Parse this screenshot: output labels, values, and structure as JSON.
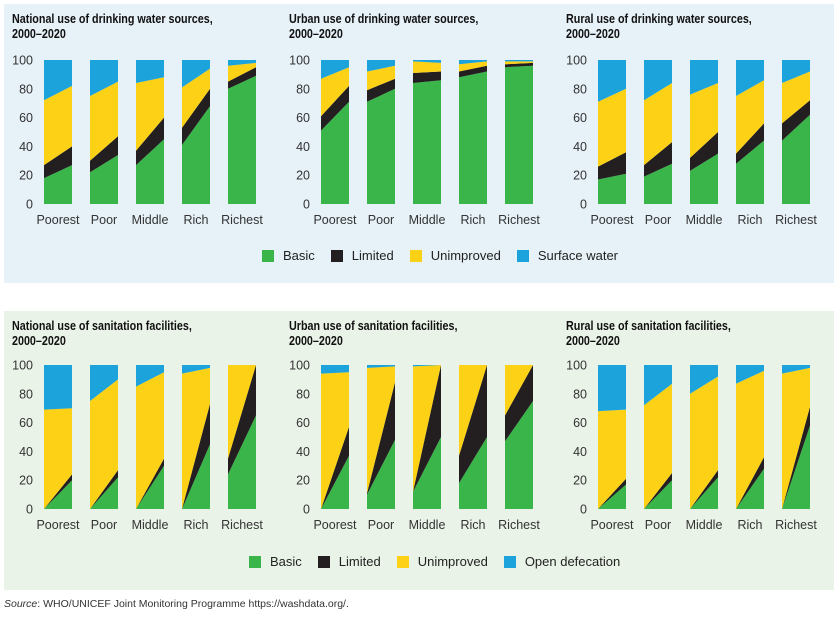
{
  "colors": {
    "basic": "#3ab54a",
    "limited": "#231f20",
    "unimproved": "#fcd116",
    "surface": "#1ca3dc"
  },
  "legend_water": [
    "Basic",
    "Limited",
    "Unimproved",
    "Surface water"
  ],
  "legend_sanitation": [
    "Basic",
    "Limited",
    "Unimproved",
    "Open defecation"
  ],
  "source": {
    "label": "Source",
    "text": ": WHO/UNICEF Joint Monitoring Programme https://washdata.org/."
  },
  "chart_data": [
    {
      "type": "area",
      "stacked_bar_area": true,
      "title_line1": "National use of drinking water sources,",
      "title_line2": "2000–2020",
      "categories": [
        "Poorest",
        "Poor",
        "Middle",
        "Rich",
        "Richest"
      ],
      "ylim": [
        0,
        100
      ],
      "yticks": [
        0,
        20,
        40,
        60,
        80,
        100
      ],
      "series": [
        {
          "name": "Basic",
          "key": "basic",
          "start": [
            18,
            22,
            27,
            41,
            80
          ],
          "end": [
            27,
            34,
            45,
            68,
            89
          ]
        },
        {
          "name": "Limited",
          "key": "limited",
          "start": [
            9,
            8,
            10,
            12,
            5
          ],
          "end": [
            13,
            13,
            15,
            12,
            6
          ]
        },
        {
          "name": "Unimproved",
          "key": "unimproved",
          "start": [
            45,
            45,
            47,
            28,
            11
          ],
          "end": [
            42,
            38,
            28,
            14,
            3
          ]
        },
        {
          "name": "Surface water",
          "key": "surface",
          "start": [
            28,
            25,
            16,
            19,
            4
          ],
          "end": [
            18,
            15,
            12,
            6,
            2
          ]
        }
      ]
    },
    {
      "type": "area",
      "stacked_bar_area": true,
      "title_line1": "Urban use of drinking water sources,",
      "title_line2": "2000–2020",
      "categories": [
        "Poorest",
        "Poor",
        "Middle",
        "Rich",
        "Richest"
      ],
      "ylim": [
        0,
        100
      ],
      "yticks": [
        0,
        20,
        40,
        60,
        80,
        100
      ],
      "series": [
        {
          "name": "Basic",
          "key": "basic",
          "start": [
            51,
            71,
            84,
            88,
            95
          ],
          "end": [
            71,
            80,
            86,
            92,
            96
          ]
        },
        {
          "name": "Limited",
          "key": "limited",
          "start": [
            10,
            8,
            7,
            4,
            2
          ],
          "end": [
            11,
            7,
            6,
            4,
            2
          ]
        },
        {
          "name": "Unimproved",
          "key": "unimproved",
          "start": [
            26,
            13,
            8,
            5,
            2
          ],
          "end": [
            13,
            9,
            6,
            3,
            1
          ]
        },
        {
          "name": "Surface water",
          "key": "surface",
          "start": [
            13,
            8,
            1,
            3,
            1
          ],
          "end": [
            5,
            4,
            2,
            1,
            1
          ]
        }
      ]
    },
    {
      "type": "area",
      "stacked_bar_area": true,
      "title_line1": "Rural use of drinking water sources,",
      "title_line2": "2000–2020",
      "categories": [
        "Poorest",
        "Poor",
        "Middle",
        "Rich",
        "Richest"
      ],
      "ylim": [
        0,
        100
      ],
      "yticks": [
        0,
        20,
        40,
        60,
        80,
        100
      ],
      "series": [
        {
          "name": "Basic",
          "key": "basic",
          "start": [
            17,
            19,
            23,
            28,
            44
          ],
          "end": [
            21,
            28,
            35,
            44,
            62
          ]
        },
        {
          "name": "Limited",
          "key": "limited",
          "start": [
            9,
            8,
            9,
            7,
            12
          ],
          "end": [
            15,
            15,
            15,
            12,
            10
          ]
        },
        {
          "name": "Unimproved",
          "key": "unimproved",
          "start": [
            45,
            45,
            44,
            40,
            28
          ],
          "end": [
            44,
            41,
            34,
            30,
            20
          ]
        },
        {
          "name": "Surface water",
          "key": "surface",
          "start": [
            29,
            28,
            24,
            25,
            16
          ],
          "end": [
            20,
            16,
            16,
            14,
            8
          ]
        }
      ]
    },
    {
      "type": "area",
      "stacked_bar_area": true,
      "title_line1": "National use of sanitation facilities,",
      "title_line2": "2000–2020",
      "categories": [
        "Poorest",
        "Poor",
        "Middle",
        "Rich",
        "Richest"
      ],
      "ylim": [
        0,
        100
      ],
      "yticks": [
        0,
        20,
        40,
        60,
        80,
        100
      ],
      "series": [
        {
          "name": "Basic",
          "key": "basic",
          "start": [
            0,
            0,
            0,
            0,
            24
          ],
          "end": [
            20,
            22,
            30,
            45,
            65
          ]
        },
        {
          "name": "Limited",
          "key": "limited",
          "start": [
            0,
            0,
            0,
            0,
            11
          ],
          "end": [
            4,
            5,
            5,
            28,
            35
          ]
        },
        {
          "name": "Unimproved",
          "key": "unimproved",
          "start": [
            69,
            75,
            85,
            94,
            65
          ],
          "end": [
            46,
            63,
            60,
            25,
            0
          ]
        },
        {
          "name": "Open defecation",
          "key": "surface",
          "start": [
            31,
            25,
            15,
            6,
            0
          ],
          "end": [
            30,
            10,
            5,
            2,
            0
          ]
        }
      ]
    },
    {
      "type": "area",
      "stacked_bar_area": true,
      "title_line1": "Urban use of sanitation facilities,",
      "title_line2": "2000–2020",
      "categories": [
        "Poorest",
        "Poor",
        "Middle",
        "Rich",
        "Richest"
      ],
      "ylim": [
        0,
        100
      ],
      "yticks": [
        0,
        20,
        40,
        60,
        80,
        100
      ],
      "series": [
        {
          "name": "Basic",
          "key": "basic",
          "start": [
            0,
            10,
            12,
            18,
            47
          ],
          "end": [
            37,
            48,
            50,
            50,
            75
          ]
        },
        {
          "name": "Limited",
          "key": "limited",
          "start": [
            0,
            1,
            0,
            19,
            18
          ],
          "end": [
            20,
            40,
            50,
            50,
            25
          ]
        },
        {
          "name": "Unimproved",
          "key": "unimproved",
          "start": [
            94,
            87,
            87,
            63,
            35
          ],
          "end": [
            38,
            11,
            0,
            0,
            0
          ]
        },
        {
          "name": "Open defecation",
          "key": "surface",
          "start": [
            6,
            2,
            1,
            0,
            0
          ],
          "end": [
            5,
            1,
            0,
            0,
            0
          ]
        }
      ]
    },
    {
      "type": "area",
      "stacked_bar_area": true,
      "title_line1": "Rural use of sanitation facilities,",
      "title_line2": "2000–2020",
      "categories": [
        "Poorest",
        "Poor",
        "Middle",
        "Rich",
        "Richest"
      ],
      "ylim": [
        0,
        100
      ],
      "yticks": [
        0,
        20,
        40,
        60,
        80,
        100
      ],
      "series": [
        {
          "name": "Basic",
          "key": "basic",
          "start": [
            0,
            0,
            0,
            0,
            0
          ],
          "end": [
            17,
            20,
            22,
            28,
            58
          ]
        },
        {
          "name": "Limited",
          "key": "limited",
          "start": [
            0,
            0,
            0,
            0,
            0
          ],
          "end": [
            4,
            5,
            5,
            8,
            13
          ]
        },
        {
          "name": "Unimproved",
          "key": "unimproved",
          "start": [
            68,
            72,
            80,
            87,
            94
          ],
          "end": [
            48,
            62,
            65,
            60,
            27
          ]
        },
        {
          "name": "Open defecation",
          "key": "surface",
          "start": [
            32,
            28,
            20,
            13,
            6
          ],
          "end": [
            31,
            13,
            8,
            4,
            2
          ]
        }
      ]
    }
  ]
}
